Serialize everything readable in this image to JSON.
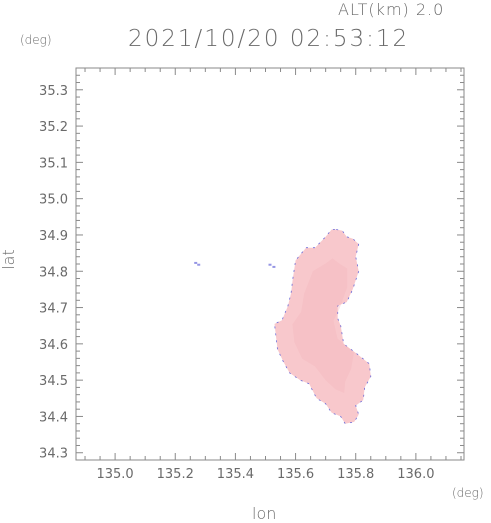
{
  "header": {
    "alt_label": "ALT(km) 2.0",
    "timestamp": "2021/10/20 02:53:12"
  },
  "colors": {
    "axis": "#8a8a8a",
    "echo_fill": "#f8c8cc",
    "echo_core": "#f4b4ba",
    "echo_edge": "#6a6ad8",
    "text": "#6a6a6a"
  },
  "chart_data": {
    "type": "heatmap",
    "xlabel": "lon",
    "ylabel": "lat",
    "x_unit": "(deg)",
    "y_unit": "(deg)",
    "xlim": [
      134.87,
      136.16
    ],
    "ylim": [
      34.28,
      35.36
    ],
    "xticks": [
      135.0,
      135.2,
      135.4,
      135.6,
      135.8,
      136.0
    ],
    "yticks": [
      34.3,
      34.4,
      34.5,
      34.6,
      34.7,
      34.8,
      34.9,
      35.0,
      35.1,
      35.2,
      35.3
    ],
    "xtick_labels": [
      "135.0",
      "135.2",
      "135.4",
      "135.6",
      "135.8",
      "136.0"
    ],
    "ytick_labels": [
      "34.3",
      "34.4",
      "34.5",
      "34.6",
      "34.7",
      "34.8",
      "34.9",
      "35.0",
      "35.1",
      "35.2",
      "35.3"
    ],
    "grid": false,
    "echo_region": [
      [
        135.735,
        34.915
      ],
      [
        135.755,
        34.912
      ],
      [
        135.77,
        34.895
      ],
      [
        135.79,
        34.89
      ],
      [
        135.81,
        34.875
      ],
      [
        135.8,
        34.84
      ],
      [
        135.81,
        34.8
      ],
      [
        135.79,
        34.75
      ],
      [
        135.77,
        34.715
      ],
      [
        135.74,
        34.705
      ],
      [
        135.74,
        34.67
      ],
      [
        135.75,
        34.65
      ],
      [
        135.76,
        34.6
      ],
      [
        135.8,
        34.575
      ],
      [
        135.845,
        34.545
      ],
      [
        135.85,
        34.51
      ],
      [
        135.83,
        34.48
      ],
      [
        135.825,
        34.445
      ],
      [
        135.8,
        34.43
      ],
      [
        135.81,
        34.405
      ],
      [
        135.795,
        34.385
      ],
      [
        135.765,
        34.38
      ],
      [
        135.75,
        34.4
      ],
      [
        135.72,
        34.41
      ],
      [
        135.7,
        34.435
      ],
      [
        135.67,
        34.45
      ],
      [
        135.645,
        34.49
      ],
      [
        135.615,
        34.5
      ],
      [
        135.58,
        34.52
      ],
      [
        135.56,
        34.55
      ],
      [
        135.54,
        34.585
      ],
      [
        135.535,
        34.62
      ],
      [
        135.53,
        34.655
      ],
      [
        135.555,
        34.665
      ],
      [
        135.575,
        34.705
      ],
      [
        135.585,
        34.74
      ],
      [
        135.59,
        34.775
      ],
      [
        135.6,
        34.83
      ],
      [
        135.635,
        34.865
      ],
      [
        135.665,
        34.865
      ],
      [
        135.7,
        34.895
      ],
      [
        135.72,
        34.915
      ]
    ],
    "small_echoes": [
      {
        "lon": 135.268,
        "lat": 34.823
      },
      {
        "lon": 135.278,
        "lat": 34.818
      },
      {
        "lon": 135.515,
        "lat": 34.818
      },
      {
        "lon": 135.528,
        "lat": 34.812
      }
    ]
  }
}
